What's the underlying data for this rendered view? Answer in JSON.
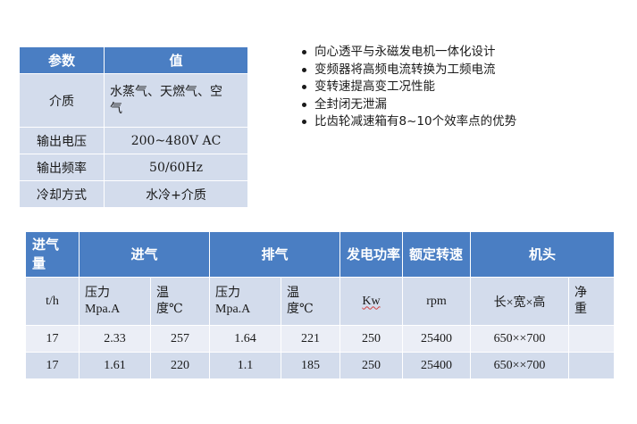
{
  "param_table": {
    "headers": [
      "参数",
      "值"
    ],
    "rows": [
      {
        "name": "介质",
        "value": "水蒸气、天燃气、空气"
      },
      {
        "name": "输出电压",
        "value": "200~480V AC"
      },
      {
        "name": "输出频率",
        "value": "50/60Hz"
      },
      {
        "name": "冷却方式",
        "value": "水冷+介质"
      }
    ]
  },
  "features": [
    "向心透平与永磁发电机一体化设计",
    "变频器将高频电流转换为工频电流",
    "变转速提高变工况性能",
    "全封闭无泄漏",
    "比齿轮减速箱有8~10个效率点的优势"
  ],
  "spec_table": {
    "headers": {
      "intake_amount": "进气量",
      "intake": "进气",
      "exhaust": "排气",
      "power": "发电功率",
      "rated_speed": "额定转速",
      "head": "机头"
    },
    "units": {
      "flow": "t/h",
      "intake_pressure": "压力Mpa.A",
      "intake_temp": "温度℃",
      "exhaust_pressure": "压力Mpa.A",
      "exhaust_temp": "温度℃",
      "power": "Kw",
      "speed": "rpm",
      "dimensions": "长×宽×高",
      "weight": "净重"
    },
    "rows": [
      {
        "flow": "17",
        "intake_pressure": "2.33",
        "intake_temp": "257",
        "exhaust_pressure": "1.64",
        "exhaust_temp": "221",
        "power": "250",
        "speed": "25400",
        "dimensions": "650××700",
        "weight": ""
      },
      {
        "flow": "17",
        "intake_pressure": "1.61",
        "intake_temp": "220",
        "exhaust_pressure": "1.1",
        "exhaust_temp": "185",
        "power": "250",
        "speed": "25400",
        "dimensions": "650××700",
        "weight": ""
      }
    ]
  },
  "colors": {
    "header_blue": "#4a7ec3",
    "cell_light": "#d3dcec",
    "cell_lighter": "#ebeef6"
  }
}
